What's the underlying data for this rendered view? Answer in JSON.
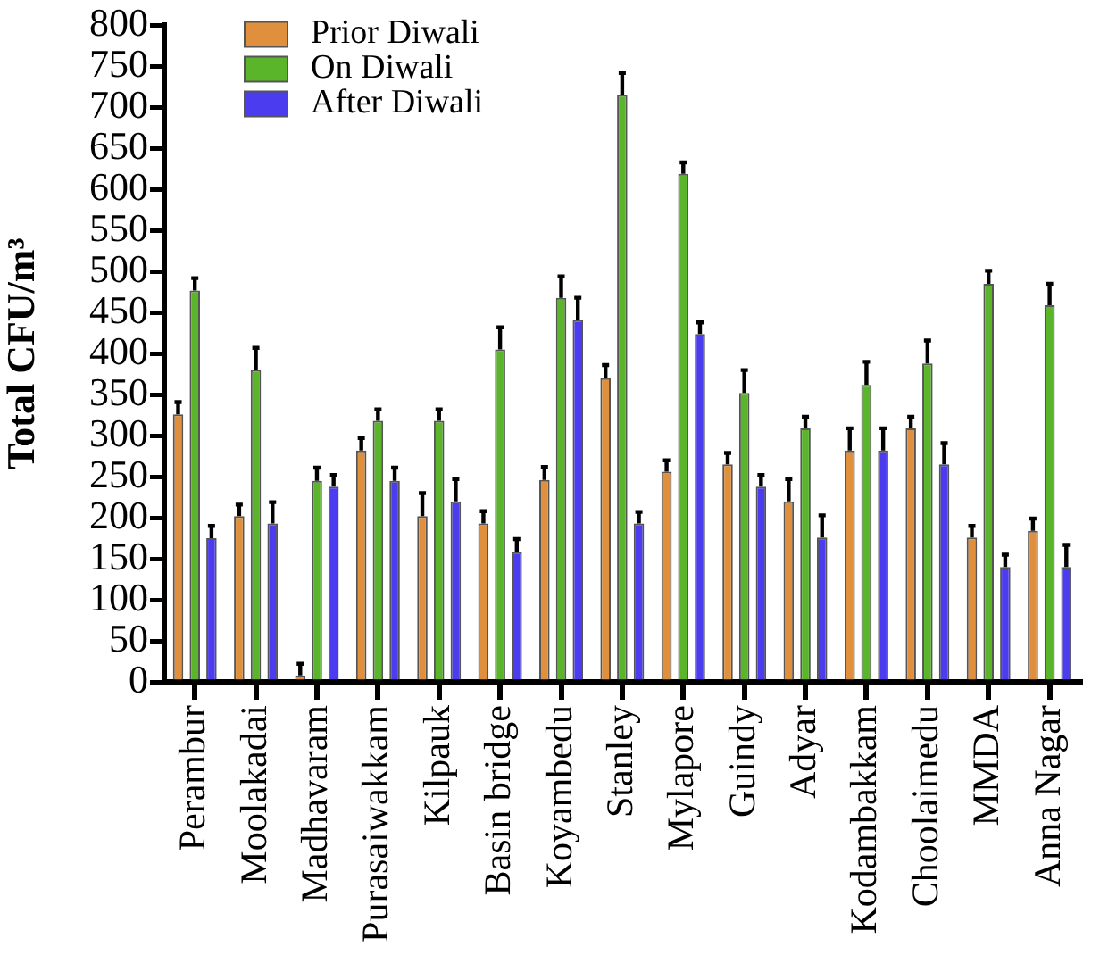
{
  "chart_data": {
    "type": "bar",
    "ylabel": "Total CFU/m³",
    "categories": [
      "Perambur",
      "Moolakadai",
      "Madhavaram",
      "Purasaiwakkam",
      "Kilpauk",
      "Basin bridge",
      "Koyambedu",
      "Stanley",
      "Mylapore",
      "Guindy",
      "Adyar",
      "Kodambakkam",
      "Choolaimedu",
      "MMDA",
      "Anna Nagar"
    ],
    "series": [
      {
        "name": "Prior Diwali",
        "color": "#e0903c",
        "values": [
          326,
          202,
          8,
          282,
          202,
          193,
          246,
          370,
          256,
          265,
          220,
          282,
          309,
          176,
          184
        ],
        "errors": [
          [
            326,
            341
          ],
          [
            202,
            216
          ],
          [
            8,
            22
          ],
          [
            282,
            297
          ],
          [
            202,
            230
          ],
          [
            193,
            208
          ],
          [
            246,
            262
          ],
          [
            370,
            386
          ],
          [
            256,
            270
          ],
          [
            265,
            279
          ],
          [
            220,
            247
          ],
          [
            282,
            309
          ],
          [
            309,
            323
          ],
          [
            176,
            190
          ],
          [
            184,
            199
          ]
        ]
      },
      {
        "name": "On Diwali",
        "color": "#5ab52a",
        "values": [
          477,
          380,
          245,
          318,
          318,
          405,
          468,
          715,
          619,
          352,
          309,
          362,
          388,
          485,
          459
        ],
        "errors": [
          [
            477,
            492
          ],
          [
            380,
            407
          ],
          [
            245,
            261
          ],
          [
            318,
            332
          ],
          [
            318,
            332
          ],
          [
            405,
            432
          ],
          [
            468,
            494
          ],
          [
            715,
            742
          ],
          [
            619,
            633
          ],
          [
            352,
            380
          ],
          [
            309,
            323
          ],
          [
            362,
            390
          ],
          [
            388,
            416
          ],
          [
            485,
            501
          ],
          [
            459,
            485
          ]
        ]
      },
      {
        "name": "After Diwali",
        "color": "#4b3cf0",
        "values": [
          175,
          193,
          238,
          245,
          220,
          158,
          441,
          193,
          424,
          238,
          176,
          282,
          265,
          140,
          140
        ],
        "errors": [
          [
            175,
            190
          ],
          [
            193,
            219
          ],
          [
            238,
            252
          ],
          [
            245,
            261
          ],
          [
            220,
            247
          ],
          [
            158,
            174
          ],
          [
            441,
            468
          ],
          [
            193,
            207
          ],
          [
            424,
            438
          ],
          [
            238,
            252
          ],
          [
            176,
            203
          ],
          [
            282,
            309
          ],
          [
            265,
            291
          ],
          [
            140,
            155
          ],
          [
            140,
            167
          ]
        ]
      }
    ],
    "ylim": [
      0,
      800
    ],
    "yticks": [
      0,
      50,
      100,
      150,
      200,
      250,
      300,
      350,
      400,
      450,
      500,
      550,
      600,
      650,
      700,
      750,
      800
    ],
    "grid": false,
    "legend": "top left"
  }
}
